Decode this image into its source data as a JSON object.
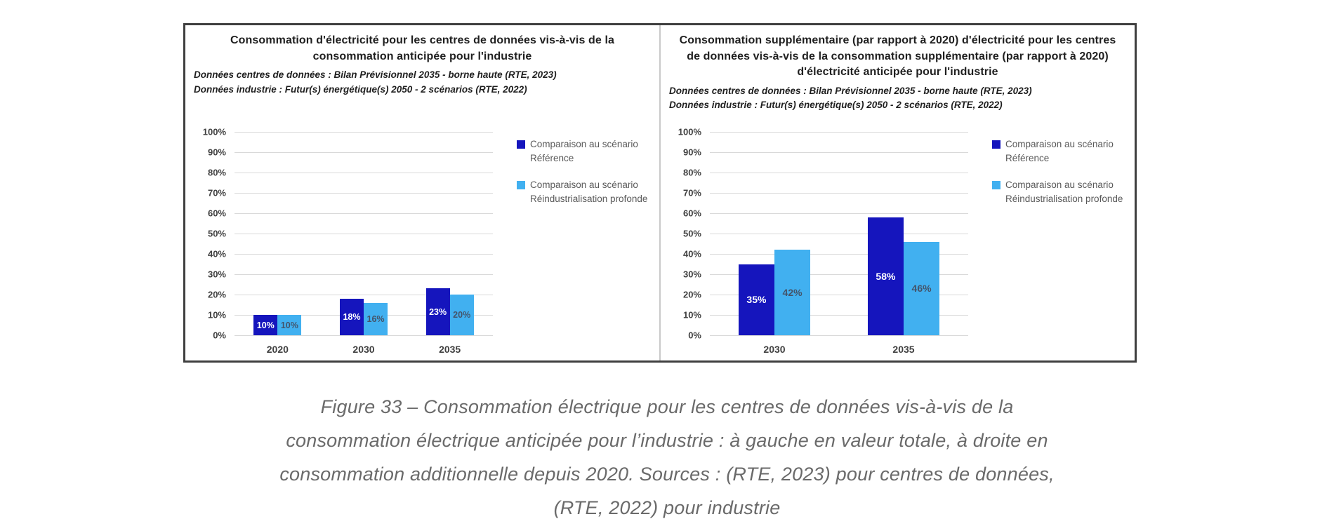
{
  "colors": {
    "series_reference": "#1515BD",
    "series_reindustrialisation": "#41B0F0",
    "frame_border": "#3f3f3f",
    "gridline": "#d9d9d9",
    "axis_text": "#404040",
    "legend_text": "#595959",
    "caption_text": "#6a6a6a"
  },
  "caption": {
    "lines": [
      "Figure 33 – Consommation électrique pour les centres de données vis-à-vis de la",
      "consommation électrique anticipée pour l’industrie : à gauche en valeur totale, à droite en",
      "consommation additionnelle depuis 2020. Sources : (RTE, 2023) pour centres de données,",
      "(RTE, 2022) pour industrie"
    ]
  },
  "chart_data": [
    {
      "type": "bar",
      "title": "Consommation d'électricité pour les centres de données vis-à-vis de la consommation anticipée pour l'industrie",
      "subtitle1": "Données centres de données : Bilan Prévisionnel 2035 - borne haute (RTE, 2023)",
      "subtitle2": "Données industrie : Futur(s) énergétique(s) 2050 - 2 scénarios (RTE, 2022)",
      "categories": [
        "2020",
        "2030",
        "2035"
      ],
      "series": [
        {
          "name": "Comparaison au scénario Référence",
          "values": [
            10,
            18,
            23
          ],
          "color": "#1515BD",
          "label_color": "#ffffff"
        },
        {
          "name": "Comparaison au scénario Réindustrialisation profonde",
          "values": [
            10,
            16,
            20
          ],
          "color": "#41B0F0",
          "label_color": "#44546A"
        }
      ],
      "xlabel": "",
      "ylabel": "",
      "ylim": [
        0,
        100
      ],
      "ytick_step": 10,
      "ytick_suffix": "%",
      "grid": true,
      "legend_position": "right",
      "data_labels": true
    },
    {
      "type": "bar",
      "title": "Consommation supplémentaire (par rapport à 2020) d'électricité pour les centres de données vis-à-vis de la consommation supplémentaire (par rapport à 2020) d'électricité anticipée pour l'industrie",
      "subtitle1": "Données centres de données : Bilan Prévisionnel 2035 - borne haute (RTE, 2023)",
      "subtitle2": "Données industrie : Futur(s) énergétique(s) 2050 - 2 scénarios (RTE, 2022)",
      "categories": [
        "2030",
        "2035"
      ],
      "series": [
        {
          "name": "Comparaison au scénario Référence",
          "values": [
            35,
            58
          ],
          "color": "#1515BD",
          "label_color": "#ffffff"
        },
        {
          "name": "Comparaison au scénario Réindustrialisation profonde",
          "values": [
            42,
            46
          ],
          "color": "#41B0F0",
          "label_color": "#44546A"
        }
      ],
      "xlabel": "",
      "ylabel": "",
      "ylim": [
        0,
        100
      ],
      "ytick_step": 10,
      "ytick_suffix": "%",
      "grid": true,
      "legend_position": "right",
      "data_labels": true
    }
  ]
}
